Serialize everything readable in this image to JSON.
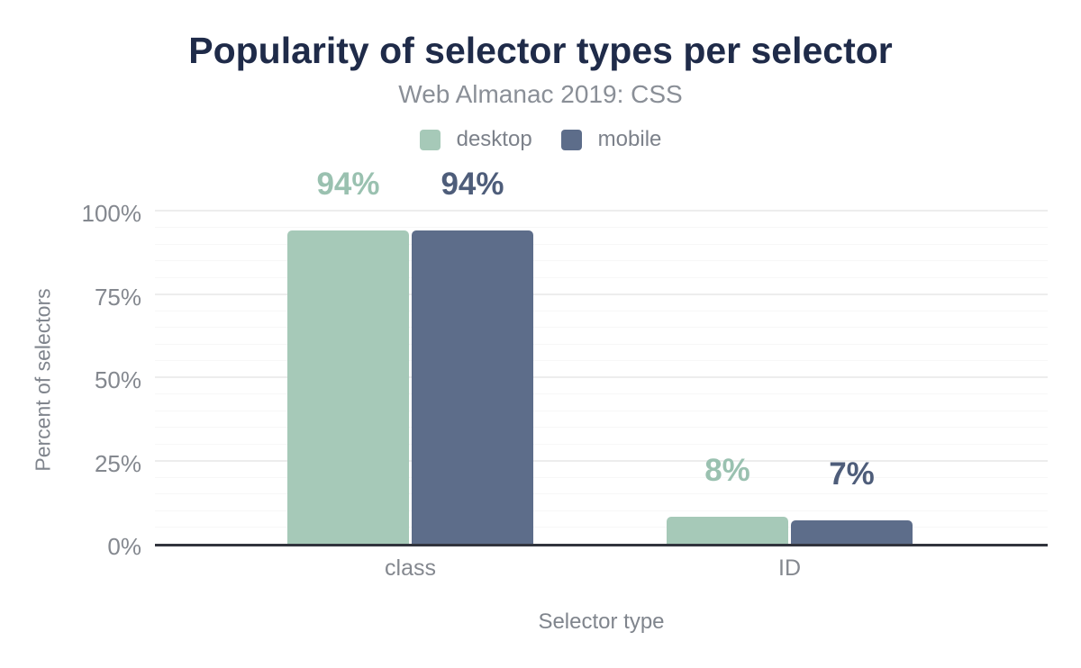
{
  "header": {
    "title": "Popularity of selector types per selector",
    "subtitle": "Web Almanac 2019: CSS"
  },
  "legend": {
    "items": [
      {
        "label": "desktop",
        "color": "#a6c9b8"
      },
      {
        "label": "mobile",
        "color": "#5d6d8a"
      }
    ]
  },
  "chart_data": {
    "type": "bar",
    "title": "Popularity of selector types per selector",
    "subtitle": "Web Almanac 2019: CSS",
    "categories": [
      "class",
      "ID"
    ],
    "series": [
      {
        "name": "desktop",
        "color": "#a6c9b8",
        "label_color": "#9ac1b0",
        "values": [
          94,
          8
        ],
        "value_labels": [
          "94%",
          "8%"
        ]
      },
      {
        "name": "mobile",
        "color": "#5d6d8a",
        "label_color": "#4e5d7a",
        "values": [
          94,
          7
        ],
        "value_labels": [
          "94%",
          "7%"
        ]
      }
    ],
    "xlabel": "Selector type",
    "ylabel": "Percent of selectors",
    "ylim": [
      0,
      100
    ],
    "yticks": [
      {
        "value": 0,
        "label": "0%"
      },
      {
        "value": 25,
        "label": "25%"
      },
      {
        "value": 50,
        "label": "50%"
      },
      {
        "value": 75,
        "label": "75%"
      },
      {
        "value": 100,
        "label": "100%"
      }
    ],
    "minor_grid_step": 5,
    "grid": true,
    "legend_position": "top"
  },
  "colors": {
    "title": "#1f2b49",
    "subtitle": "#8a8f97",
    "axis_text": "#84888f",
    "axis_line": "#31343d",
    "grid_major": "#ededed",
    "grid_minor": "#f7f7f7",
    "background": "#ffffff"
  }
}
